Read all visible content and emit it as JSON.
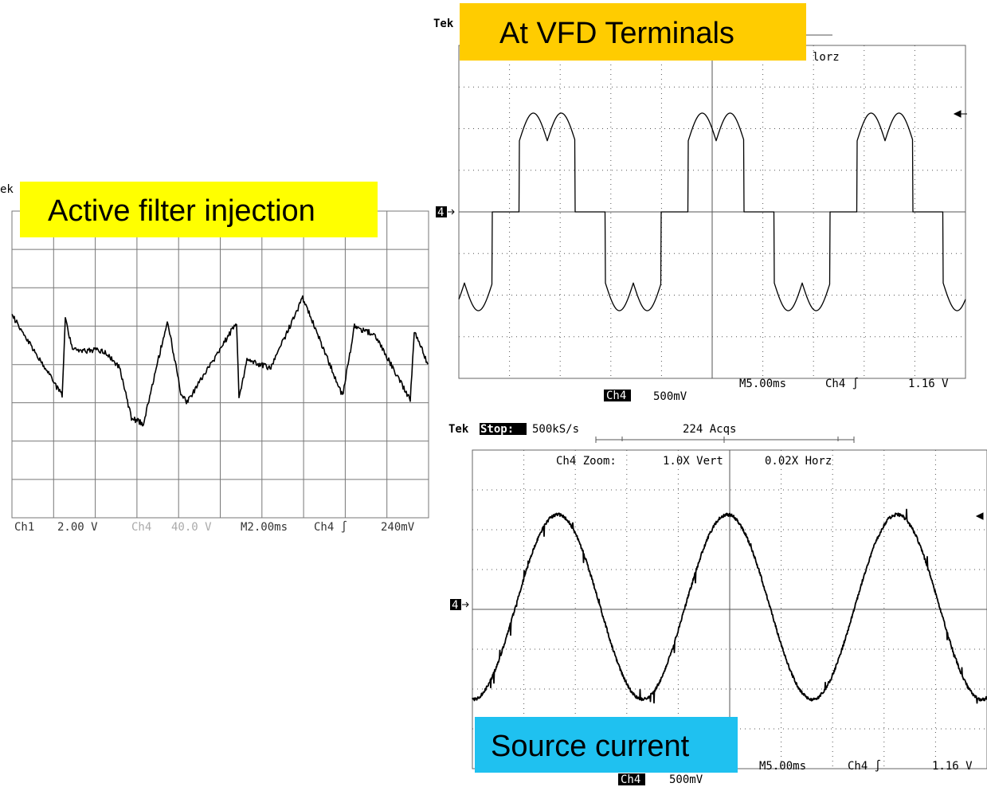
{
  "injection": {
    "label": "Active filter injection",
    "brand": "ek",
    "footer": [
      "Ch1",
      "2.00 V",
      "Ch4",
      "40.0 V",
      "M2.00ms",
      "Ch4 ∫",
      "240mV"
    ]
  },
  "vfd": {
    "label": "At VFD Terminals",
    "brand": "Tek",
    "zoom_tail": "lorz",
    "marker": "4",
    "footer": [
      "M5.00ms",
      "Ch4 ∫",
      "1.16 V"
    ],
    "channel": "Ch4",
    "scale": "500mV"
  },
  "source": {
    "label": "Source current",
    "brand": "Tek",
    "state": "Stop:",
    "rate": "500kS/s",
    "acqs": "224 Acqs",
    "zoom": [
      "Ch4 Zoom:",
      "1.0X Vert",
      "0.02X Horz"
    ],
    "marker": "4",
    "footer": [
      "M5.00ms",
      "Ch4 ∫",
      "1.16 V"
    ],
    "channel": "Ch4",
    "scale": "500mV"
  }
}
